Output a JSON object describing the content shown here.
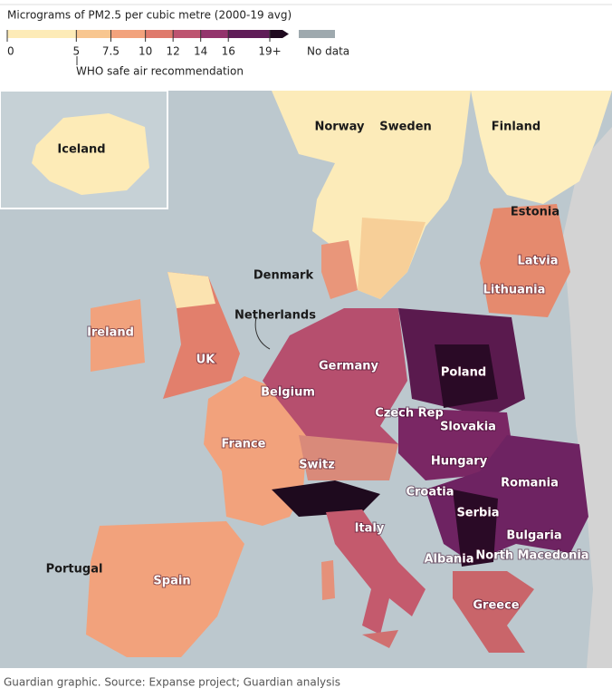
{
  "title": "Micrograms of PM2.5 per cubic metre (2000-19 avg)",
  "legend": {
    "ticks": [
      0,
      5,
      7.5,
      10,
      12,
      14,
      16,
      {
        "value": 19,
        "label": "19+"
      }
    ],
    "colors": [
      "#fdebb7",
      "#f8c690",
      "#f2a27c",
      "#df7a6c",
      "#bd5470",
      "#93356c",
      "#5f1c57",
      "#1f0a1f"
    ],
    "no_data": {
      "label": "No data",
      "color": "#9ea9ae"
    },
    "annotation": "WHO safe air recommendation"
  },
  "map_labels": [
    "Iceland",
    "Norway",
    "Sweden",
    "Finland",
    "Estonia",
    "Latvia",
    "Lithuania",
    "Denmark",
    "Netherlands",
    "Ireland",
    "UK",
    "Germany",
    "Poland",
    "Belgium",
    "Czech Rep",
    "Slovakia",
    "France",
    "Hungary",
    "Switz",
    "Romania",
    "Croatia",
    "Serbia",
    "Italy",
    "Bulgaria",
    "Albania",
    "North Macedonia",
    "Portugal",
    "Spain",
    "Greece"
  ],
  "source": "Guardian graphic. Source: Expanse project; Guardian analysis"
}
